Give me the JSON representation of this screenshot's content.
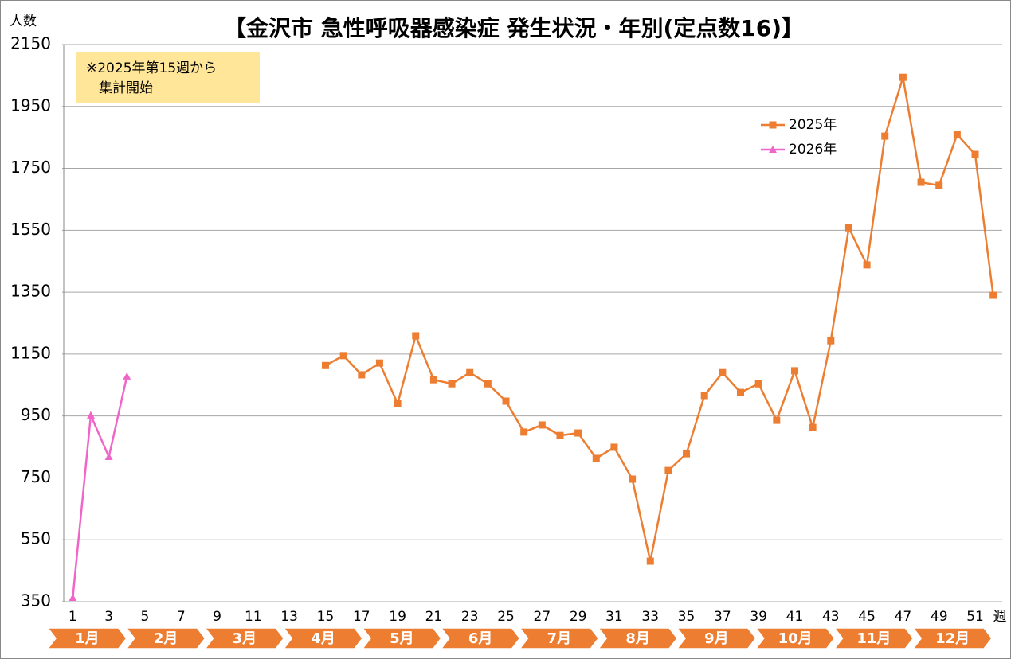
{
  "chart_data": {
    "type": "line",
    "title": "【金沢市 急性呼吸器感染症 発生状況・年別(定点数16)】",
    "ylabel": "人数",
    "xlabel": "週",
    "annotation": [
      "※2025年第15週から",
      "集計開始"
    ],
    "categories": [
      1,
      null,
      3,
      null,
      5,
      null,
      7,
      null,
      9,
      null,
      11,
      null,
      13,
      null,
      15,
      null,
      17,
      null,
      19,
      null,
      21,
      null,
      23,
      null,
      25,
      null,
      27,
      null,
      29,
      null,
      31,
      null,
      33,
      null,
      35,
      null,
      37,
      null,
      39,
      null,
      41,
      null,
      43,
      null,
      45,
      null,
      47,
      null,
      49,
      null,
      51,
      null
    ],
    "months": [
      "1月",
      "2月",
      "3月",
      "4月",
      "5月",
      "6月",
      "7月",
      "8月",
      "9月",
      "10月",
      "11月",
      "12月"
    ],
    "ylim": [
      350,
      2150
    ],
    "yticks": [
      350,
      550,
      750,
      950,
      1150,
      1350,
      1550,
      1750,
      1950,
      2150
    ],
    "grid": true,
    "legend": "upper right",
    "series": [
      {
        "name": "2025年",
        "color": "#ed7d31",
        "marker": "square",
        "values": [
          null,
          null,
          null,
          null,
          null,
          null,
          null,
          null,
          null,
          null,
          null,
          null,
          null,
          null,
          1113,
          1145,
          1083,
          1121,
          990,
          1209,
          1067,
          1054,
          1090,
          1054,
          998,
          898,
          921,
          887,
          895,
          813,
          849,
          746,
          481,
          774,
          828,
          1016,
          1090,
          1026,
          1054,
          936,
          1096,
          913,
          1193,
          1558,
          1438,
          1854,
          2044,
          1705,
          1695,
          1859,
          1795,
          1340
        ]
      },
      {
        "name": "2026年",
        "color": "#f066c8",
        "marker": "triangle",
        "values": [
          363,
          952,
          818,
          1078,
          null,
          null,
          null,
          null,
          null,
          null,
          null,
          null,
          null,
          null,
          null,
          null,
          null,
          null,
          null,
          null,
          null,
          null,
          null,
          null,
          null,
          null,
          null,
          null,
          null,
          null,
          null,
          null,
          null,
          null,
          null,
          null,
          null,
          null,
          null,
          null,
          null,
          null,
          null,
          null,
          null,
          null,
          null,
          null,
          null,
          null,
          null,
          null
        ]
      }
    ]
  }
}
